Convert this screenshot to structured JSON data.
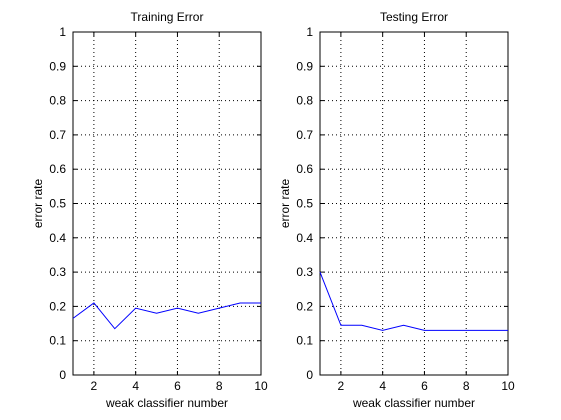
{
  "chart_data": [
    {
      "type": "line",
      "title": "Training Error",
      "xlabel": "weak classifier number",
      "ylabel": "error rate",
      "xlim": [
        1,
        10
      ],
      "ylim": [
        0,
        1
      ],
      "xticks": [
        2,
        4,
        6,
        8,
        10
      ],
      "yticks": [
        0,
        0.1,
        0.2,
        0.3,
        0.4,
        0.5,
        0.6,
        0.7,
        0.8,
        0.9,
        1
      ],
      "grid": true,
      "line_color": "#0000ff",
      "x": [
        1,
        2,
        3,
        4,
        5,
        6,
        7,
        8,
        9,
        10
      ],
      "y": [
        0.165,
        0.21,
        0.135,
        0.195,
        0.18,
        0.195,
        0.18,
        0.195,
        0.21,
        0.21
      ]
    },
    {
      "type": "line",
      "title": "Testing Error",
      "xlabel": "weak classifier number",
      "ylabel": "error rate",
      "xlim": [
        1,
        10
      ],
      "ylim": [
        0,
        1
      ],
      "xticks": [
        2,
        4,
        6,
        8,
        10
      ],
      "yticks": [
        0,
        0.1,
        0.2,
        0.3,
        0.4,
        0.5,
        0.6,
        0.7,
        0.8,
        0.9,
        1
      ],
      "grid": true,
      "line_color": "#0000ff",
      "x": [
        1,
        2,
        3,
        4,
        5,
        6,
        7,
        8,
        9,
        10
      ],
      "y": [
        0.3,
        0.145,
        0.145,
        0.13,
        0.145,
        0.13,
        0.13,
        0.13,
        0.13,
        0.13
      ]
    }
  ]
}
